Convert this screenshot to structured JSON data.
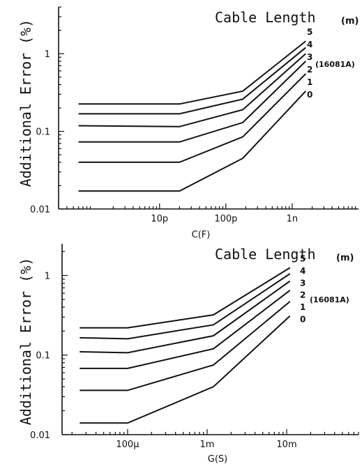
{
  "chart_data": [
    {
      "type": "line",
      "title": "Cable Length",
      "title_unit": "(m)",
      "ylabel": "Additional Error (%)",
      "xlabel": "C(F)",
      "x_scale": "log",
      "y_scale": "log",
      "xlim": [
        3e-13,
        1e-08
      ],
      "ylim": [
        0.01,
        4
      ],
      "x_tick_values": [
        1e-11,
        1e-10,
        1e-09
      ],
      "x_tick_labels": [
        "10p",
        "100p",
        "1n"
      ],
      "y_tick_values": [
        0.01,
        0.1,
        1
      ],
      "y_tick_labels": [
        "0.01",
        "0.1",
        "1"
      ],
      "annotation": "(16081A)",
      "grid": false,
      "series": [
        {
          "name": "5",
          "x": [
            6e-13,
            2e-11,
            1.8e-10,
            1.6e-09
          ],
          "values": [
            0.225,
            0.225,
            0.33,
            1.45
          ]
        },
        {
          "name": "4",
          "x": [
            6e-13,
            2e-11,
            1.8e-10,
            1.6e-09
          ],
          "values": [
            0.168,
            0.168,
            0.26,
            1.2
          ]
        },
        {
          "name": "3",
          "x": [
            6e-13,
            2e-11,
            1.8e-10,
            1.6e-09
          ],
          "values": [
            0.118,
            0.115,
            0.19,
            1.0
          ]
        },
        {
          "name": "2",
          "x": [
            6e-13,
            2e-11,
            1.8e-10,
            1.6e-09
          ],
          "values": [
            0.073,
            0.073,
            0.13,
            0.8
          ]
        },
        {
          "name": "1",
          "x": [
            6e-13,
            2e-11,
            1.8e-10,
            1.6e-09
          ],
          "values": [
            0.04,
            0.04,
            0.085,
            0.55
          ]
        },
        {
          "name": "0",
          "x": [
            6e-13,
            2e-11,
            1.8e-10,
            1.6e-09
          ],
          "values": [
            0.017,
            0.017,
            0.045,
            0.33
          ]
        }
      ]
    },
    {
      "type": "line",
      "title": "Cable Length",
      "title_unit": "(m)",
      "ylabel": "Additional Error (%)",
      "xlabel": "G(S)",
      "x_scale": "log",
      "y_scale": "log",
      "xlim": [
        1.5e-05,
        0.08
      ],
      "ylim": [
        0.01,
        2.5
      ],
      "x_tick_values": [
        0.0001,
        0.001,
        0.01
      ],
      "x_tick_labels": [
        "100µ",
        "1m",
        "10m"
      ],
      "y_tick_values": [
        0.01,
        0.1,
        1
      ],
      "y_tick_labels": [
        "0.01",
        "0.1",
        "1"
      ],
      "annotation": "(16081A)",
      "grid": false,
      "series": [
        {
          "name": "5",
          "x": [
            2.5e-05,
            0.0001,
            0.0012,
            0.011
          ],
          "values": [
            0.22,
            0.22,
            0.32,
            1.25
          ]
        },
        {
          "name": "4",
          "x": [
            2.5e-05,
            0.0001,
            0.0012,
            0.011
          ],
          "values": [
            0.165,
            0.16,
            0.24,
            1.05
          ]
        },
        {
          "name": "3",
          "x": [
            2.5e-05,
            0.0001,
            0.0012,
            0.011
          ],
          "values": [
            0.11,
            0.107,
            0.175,
            0.85
          ]
        },
        {
          "name": "2",
          "x": [
            2.5e-05,
            0.0001,
            0.0012,
            0.011
          ],
          "values": [
            0.068,
            0.068,
            0.12,
            0.65
          ]
        },
        {
          "name": "1",
          "x": [
            2.5e-05,
            0.0001,
            0.0012,
            0.011
          ],
          "values": [
            0.036,
            0.036,
            0.075,
            0.47
          ]
        },
        {
          "name": "0",
          "x": [
            2.5e-05,
            0.0001,
            0.0012,
            0.011
          ],
          "values": [
            0.014,
            0.014,
            0.04,
            0.31
          ]
        }
      ]
    }
  ]
}
